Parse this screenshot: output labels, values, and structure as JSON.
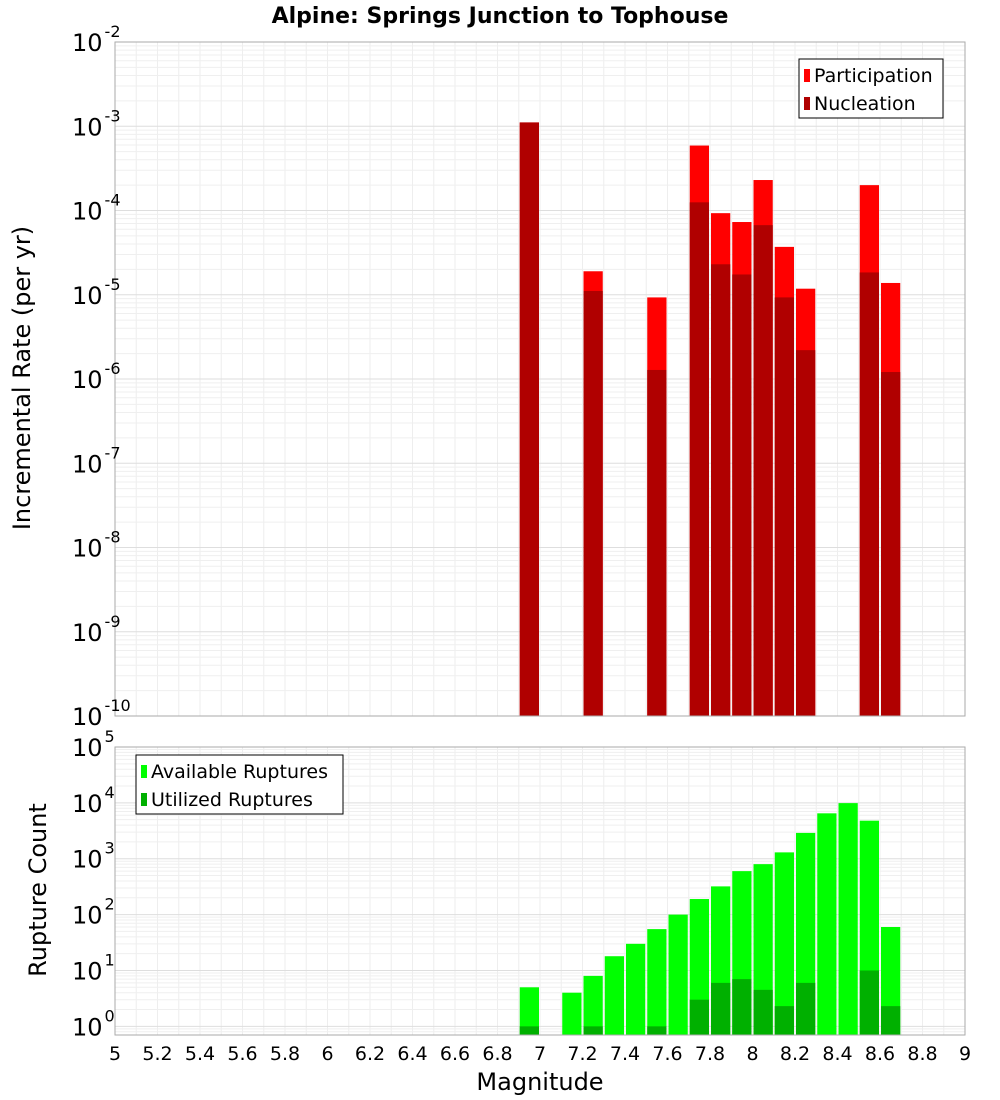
{
  "chart_data": [
    {
      "type": "bar",
      "title": "Alpine: Springs Junction to Tophouse",
      "xlabel": "",
      "ylabel": "Incremental Rate (per yr)",
      "yscale": "log",
      "xlim": [
        5,
        9
      ],
      "ylim": [
        1e-10,
        0.01
      ],
      "ytick_exponents": [
        -10,
        -9,
        -8,
        -7,
        -6,
        -5,
        -4,
        -3,
        -2
      ],
      "bin_width": 0.1,
      "grid": true,
      "legend_position": "top-right",
      "series": [
        {
          "name": "Participation",
          "color": "#ff0000",
          "x": [
            6.95,
            7.25,
            7.55,
            7.75,
            7.85,
            7.95,
            8.05,
            8.15,
            8.25,
            8.55,
            8.65
          ],
          "values": [
            0.00111,
            1.9e-05,
            9.3e-06,
            0.00059,
            9.3e-05,
            7.3e-05,
            0.00023,
            3.7e-05,
            1.18e-05,
            0.0002,
            1.38e-05
          ]
        },
        {
          "name": "Nucleation",
          "color": "#b00000",
          "x": [
            6.95,
            7.25,
            7.55,
            7.75,
            7.85,
            7.95,
            8.05,
            8.15,
            8.25,
            8.55,
            8.65
          ],
          "values": [
            0.00111,
            1.11e-05,
            1.28e-06,
            0.000125,
            2.3e-05,
            1.74e-05,
            6.7e-05,
            9.3e-06,
            2.2e-06,
            1.84e-05,
            1.21e-06
          ]
        }
      ]
    },
    {
      "type": "bar",
      "title": "",
      "xlabel": "Magnitude",
      "ylabel": "Rupture Count",
      "yscale": "log",
      "xlim": [
        5,
        9
      ],
      "ylim": [
        0.7,
        100000
      ],
      "ytick_exponents": [
        0,
        1,
        2,
        3,
        4,
        5
      ],
      "xticks": [
        "5",
        "5.2",
        "5.4",
        "5.6",
        "5.8",
        "6",
        "6.2",
        "6.4",
        "6.6",
        "6.8",
        "7",
        "7.2",
        "7.4",
        "7.6",
        "7.8",
        "8",
        "8.2",
        "8.4",
        "8.6",
        "8.8",
        "9"
      ],
      "bin_width": 0.1,
      "grid": true,
      "legend_position": "top-left",
      "series": [
        {
          "name": "Available Ruptures",
          "color": "#00ff00",
          "x": [
            6.95,
            7.15,
            7.25,
            7.35,
            7.45,
            7.55,
            7.65,
            7.75,
            7.85,
            7.95,
            8.05,
            8.15,
            8.25,
            8.35,
            8.45,
            8.55,
            8.65
          ],
          "values": [
            5,
            4,
            8,
            18,
            30,
            55,
            100,
            190,
            320,
            600,
            800,
            1300,
            2900,
            6500,
            9900,
            4800,
            60
          ]
        },
        {
          "name": "Utilized Ruptures",
          "color": "#00b000",
          "x": [
            6.95,
            7.25,
            7.55,
            7.75,
            7.85,
            7.95,
            8.05,
            8.15,
            8.25,
            8.55,
            8.65
          ],
          "values": [
            1,
            1,
            1,
            3,
            6,
            7,
            4.5,
            2.3,
            6,
            10,
            2.3
          ]
        }
      ]
    }
  ]
}
